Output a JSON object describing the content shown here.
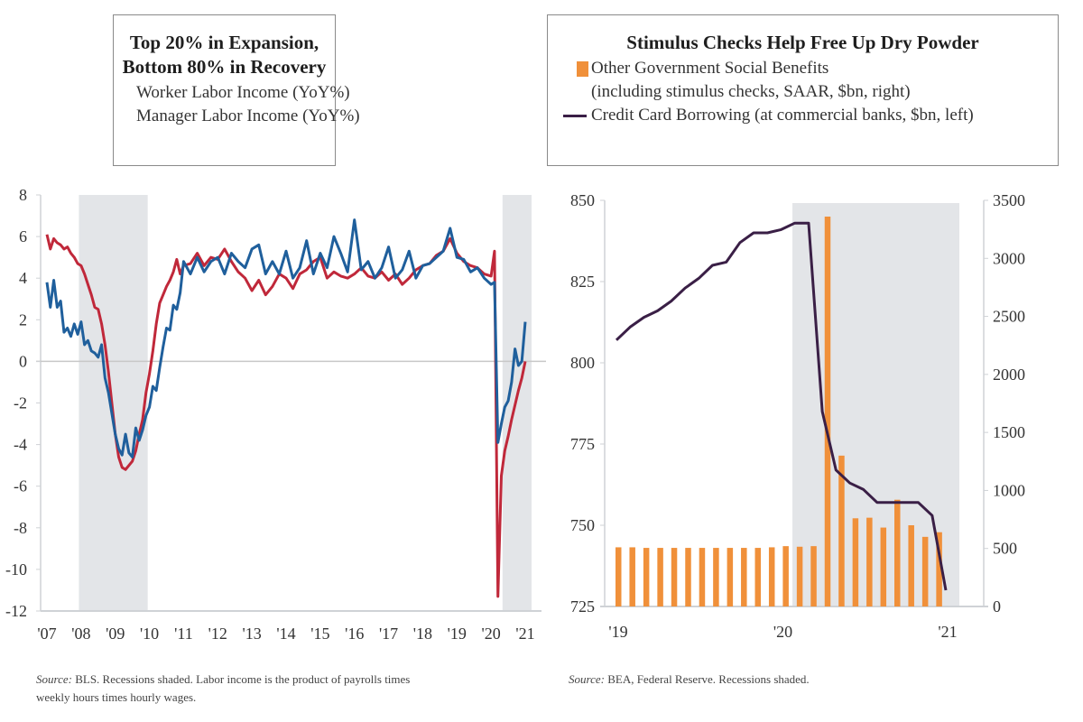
{
  "colors": {
    "worker": "#c0283a",
    "manager": "#1f5f9c",
    "benefits": "#f0903a",
    "credit": "#3a1f46",
    "recession": "#e3e5e8",
    "axis": "#cfd2d6",
    "zero_line": "#c8c8c8"
  },
  "chart_data": [
    {
      "type": "line",
      "title_lines": [
        "Top 20% in Expansion,",
        "Bottom 80% in Recovery"
      ],
      "xlabel": "",
      "ylabel": "",
      "ylim": [
        -12,
        8
      ],
      "xlim": [
        2007,
        2021
      ],
      "yticks": [
        8,
        6,
        4,
        2,
        0,
        -2,
        -4,
        -6,
        -8,
        -10,
        -12
      ],
      "xtick_labels": [
        "'07",
        "'08",
        "'09",
        "'10",
        "'11",
        "'12",
        "'13",
        "'14",
        "'15",
        "'16",
        "'17",
        "'18",
        "'19",
        "'20",
        "'21"
      ],
      "recessions": [
        [
          2007.75,
          2009.5
        ],
        [
          2020.15,
          2021.0
        ]
      ],
      "legend_position": "top",
      "series": [
        {
          "name": "Worker Labor Income (YoY%)",
          "color_key": "worker",
          "x": [
            2007.0,
            2007.1,
            2007.2,
            2007.3,
            2007.4,
            2007.5,
            2007.6,
            2007.7,
            2007.8,
            2007.9,
            2008.0,
            2008.1,
            2008.2,
            2008.3,
            2008.4,
            2008.5,
            2008.6,
            2008.7,
            2008.8,
            2008.9,
            2009.0,
            2009.1,
            2009.2,
            2009.3,
            2009.4,
            2009.5,
            2009.6,
            2009.7,
            2009.8,
            2009.9,
            2010.0,
            2010.1,
            2010.2,
            2010.3,
            2010.4,
            2010.5,
            2010.6,
            2010.7,
            2010.8,
            2010.9,
            2011.0,
            2011.2,
            2011.4,
            2011.6,
            2011.8,
            2012.0,
            2012.2,
            2012.4,
            2012.6,
            2012.8,
            2013.0,
            2013.2,
            2013.4,
            2013.6,
            2013.8,
            2014.0,
            2014.2,
            2014.4,
            2014.6,
            2014.8,
            2015.0,
            2015.2,
            2015.4,
            2015.6,
            2015.8,
            2016.0,
            2016.2,
            2016.4,
            2016.6,
            2016.8,
            2017.0,
            2017.2,
            2017.4,
            2017.6,
            2017.8,
            2018.0,
            2018.2,
            2018.4,
            2018.6,
            2018.8,
            2019.0,
            2019.2,
            2019.4,
            2019.6,
            2019.8,
            2020.0,
            2020.1,
            2020.2,
            2020.3,
            2020.4,
            2020.5,
            2020.6,
            2020.7,
            2020.8,
            2020.9,
            2021.0
          ],
          "y": [
            6.1,
            5.4,
            5.9,
            5.7,
            5.6,
            5.4,
            5.5,
            5.2,
            5.0,
            4.7,
            4.6,
            4.2,
            3.7,
            3.2,
            2.6,
            2.5,
            1.8,
            0.8,
            -0.5,
            -2.0,
            -3.5,
            -4.6,
            -5.1,
            -5.2,
            -5.0,
            -4.8,
            -4.3,
            -3.5,
            -2.8,
            -1.5,
            -0.6,
            0.5,
            1.8,
            2.8,
            3.2,
            3.6,
            3.9,
            4.3,
            4.9,
            4.2,
            4.6,
            4.7,
            5.2,
            4.6,
            5.0,
            4.9,
            5.4,
            4.8,
            4.3,
            4.0,
            3.4,
            3.9,
            3.2,
            3.6,
            4.2,
            4.0,
            3.5,
            4.2,
            4.4,
            4.8,
            5.0,
            4.0,
            4.3,
            4.1,
            4.0,
            4.2,
            4.5,
            4.1,
            4.0,
            4.3,
            3.9,
            4.2,
            3.7,
            4.0,
            4.4,
            4.6,
            4.7,
            5.1,
            5.3,
            5.9,
            5.2,
            4.8,
            4.6,
            4.5,
            4.2,
            4.1,
            5.3,
            -11.3,
            -5.5,
            -4.3,
            -3.6,
            -2.8,
            -2.1,
            -1.4,
            -0.8,
            0.0
          ]
        },
        {
          "name": "Manager Labor Income (YoY%)",
          "color_key": "manager",
          "x": [
            2007.0,
            2007.1,
            2007.2,
            2007.3,
            2007.4,
            2007.5,
            2007.6,
            2007.7,
            2007.8,
            2007.9,
            2008.0,
            2008.1,
            2008.2,
            2008.3,
            2008.4,
            2008.5,
            2008.6,
            2008.7,
            2008.8,
            2008.9,
            2009.0,
            2009.1,
            2009.2,
            2009.3,
            2009.4,
            2009.5,
            2009.6,
            2009.7,
            2009.8,
            2009.9,
            2010.0,
            2010.1,
            2010.2,
            2010.3,
            2010.4,
            2010.5,
            2010.6,
            2010.7,
            2010.8,
            2010.9,
            2011.0,
            2011.2,
            2011.4,
            2011.6,
            2011.8,
            2012.0,
            2012.2,
            2012.4,
            2012.6,
            2012.8,
            2013.0,
            2013.2,
            2013.4,
            2013.6,
            2013.8,
            2014.0,
            2014.2,
            2014.4,
            2014.6,
            2014.8,
            2015.0,
            2015.2,
            2015.4,
            2015.6,
            2015.8,
            2016.0,
            2016.2,
            2016.4,
            2016.6,
            2016.8,
            2017.0,
            2017.2,
            2017.4,
            2017.6,
            2017.8,
            2018.0,
            2018.2,
            2018.4,
            2018.6,
            2018.8,
            2019.0,
            2019.2,
            2019.4,
            2019.6,
            2019.8,
            2020.0,
            2020.1,
            2020.2,
            2020.3,
            2020.4,
            2020.5,
            2020.6,
            2020.7,
            2020.8,
            2020.9,
            2021.0
          ],
          "y": [
            3.8,
            2.6,
            3.9,
            2.6,
            2.9,
            1.4,
            1.6,
            1.2,
            1.8,
            1.3,
            1.9,
            0.8,
            1.0,
            0.5,
            0.4,
            0.2,
            0.8,
            -0.8,
            -1.5,
            -2.5,
            -3.5,
            -4.2,
            -4.5,
            -3.5,
            -4.4,
            -4.6,
            -3.2,
            -3.8,
            -3.3,
            -2.6,
            -2.2,
            -1.2,
            -1.4,
            -0.3,
            0.7,
            1.6,
            1.5,
            2.7,
            2.5,
            3.3,
            4.8,
            4.2,
            5.0,
            4.3,
            4.8,
            5.0,
            4.2,
            5.2,
            4.8,
            4.5,
            5.4,
            5.6,
            4.2,
            4.8,
            4.2,
            5.3,
            4.0,
            4.5,
            5.8,
            4.2,
            5.2,
            4.5,
            6.0,
            5.2,
            4.3,
            6.8,
            4.4,
            4.8,
            4.0,
            4.5,
            5.5,
            4.0,
            4.4,
            5.3,
            4.0,
            4.6,
            4.7,
            5.0,
            5.3,
            6.4,
            5.0,
            4.9,
            4.3,
            4.5,
            4.0,
            3.7,
            3.8,
            -3.9,
            -3.0,
            -2.2,
            -1.9,
            -1.0,
            0.6,
            -0.2,
            0.0,
            1.9
          ]
        }
      ],
      "source_note": [
        "Source:",
        " BLS. Recessions shaded. Labor income is the product of payrolls times",
        "weekly hours times hourly wages."
      ]
    },
    {
      "type": "bar+line",
      "title": "Stimulus Checks Help Free Up Dry Powder",
      "xlim": [
        2019.0,
        2021.0
      ],
      "xtick_labels": [
        "'19",
        "'20",
        "'21"
      ],
      "left_axis": {
        "ylim": [
          725,
          850
        ],
        "ticks": [
          850,
          825,
          800,
          775,
          750,
          725
        ]
      },
      "right_axis": {
        "ylim": [
          0,
          3500
        ],
        "ticks": [
          3500,
          3000,
          2500,
          2000,
          1500,
          1000,
          500,
          0
        ]
      },
      "recessions": [
        [
          2020.1,
          2021.0
        ]
      ],
      "legend_position": "top",
      "bars": {
        "name": "Other Government Social Benefits (including stimulus checks, SAAR, $bn, right)",
        "color_key": "benefits",
        "categories": [
          "Jan-19",
          "Feb-19",
          "Mar-19",
          "Apr-19",
          "May-19",
          "Jun-19",
          "Jul-19",
          "Aug-19",
          "Sep-19",
          "Oct-19",
          "Nov-19",
          "Dec-19",
          "Jan-20",
          "Feb-20",
          "Mar-20",
          "Apr-20",
          "May-20",
          "Jun-20",
          "Jul-20",
          "Aug-20",
          "Sep-20",
          "Oct-20",
          "Nov-20",
          "Dec-20"
        ],
        "values": [
          510,
          510,
          505,
          505,
          505,
          505,
          505,
          505,
          505,
          505,
          505,
          510,
          520,
          515,
          520,
          3360,
          1300,
          760,
          765,
          680,
          920,
          700,
          600,
          640
        ]
      },
      "line": {
        "name": "Credit Card Borrowing (at commercial banks, $bn, left)",
        "color_key": "credit",
        "x": [
          2019.0,
          2019.083,
          2019.167,
          2019.25,
          2019.333,
          2019.417,
          2019.5,
          2019.583,
          2019.667,
          2019.75,
          2019.833,
          2019.917,
          2020.0,
          2020.083,
          2020.167,
          2020.25,
          2020.333,
          2020.417,
          2020.5,
          2020.583,
          2020.667,
          2020.75,
          2020.833,
          2020.917,
          2021.0
        ],
        "y": [
          807,
          811,
          814,
          816,
          819,
          823,
          826,
          830,
          831,
          837,
          840,
          840,
          841,
          843,
          843,
          785,
          767,
          763,
          761,
          757,
          757,
          757,
          757,
          753,
          730
        ]
      },
      "source_note": [
        "Source:",
        " BEA, Federal Reserve. Recessions shaded."
      ]
    }
  ],
  "legends": {
    "left": {
      "title_1": "Top 20% in Expansion,",
      "title_2": "Bottom 80% in Recovery",
      "item_1": "Worker Labor Income (YoY%)",
      "item_2": "Manager Labor Income (YoY%)"
    },
    "right": {
      "title": "Stimulus Checks Help Free Up Dry Powder",
      "item_1a": "Other Government Social Benefits",
      "item_1b": "(including stimulus checks, SAAR, $bn, right)",
      "item_2": "Credit Card Borrowing (at commercial banks, $bn, left)"
    }
  },
  "sources": {
    "left_label": "Source:",
    "left_line1": " BLS. Recessions shaded. Labor income is the product of payrolls times",
    "left_line2": "weekly hours times hourly wages.",
    "right_label": "Source:",
    "right_line1": " BEA, Federal Reserve. Recessions shaded."
  }
}
